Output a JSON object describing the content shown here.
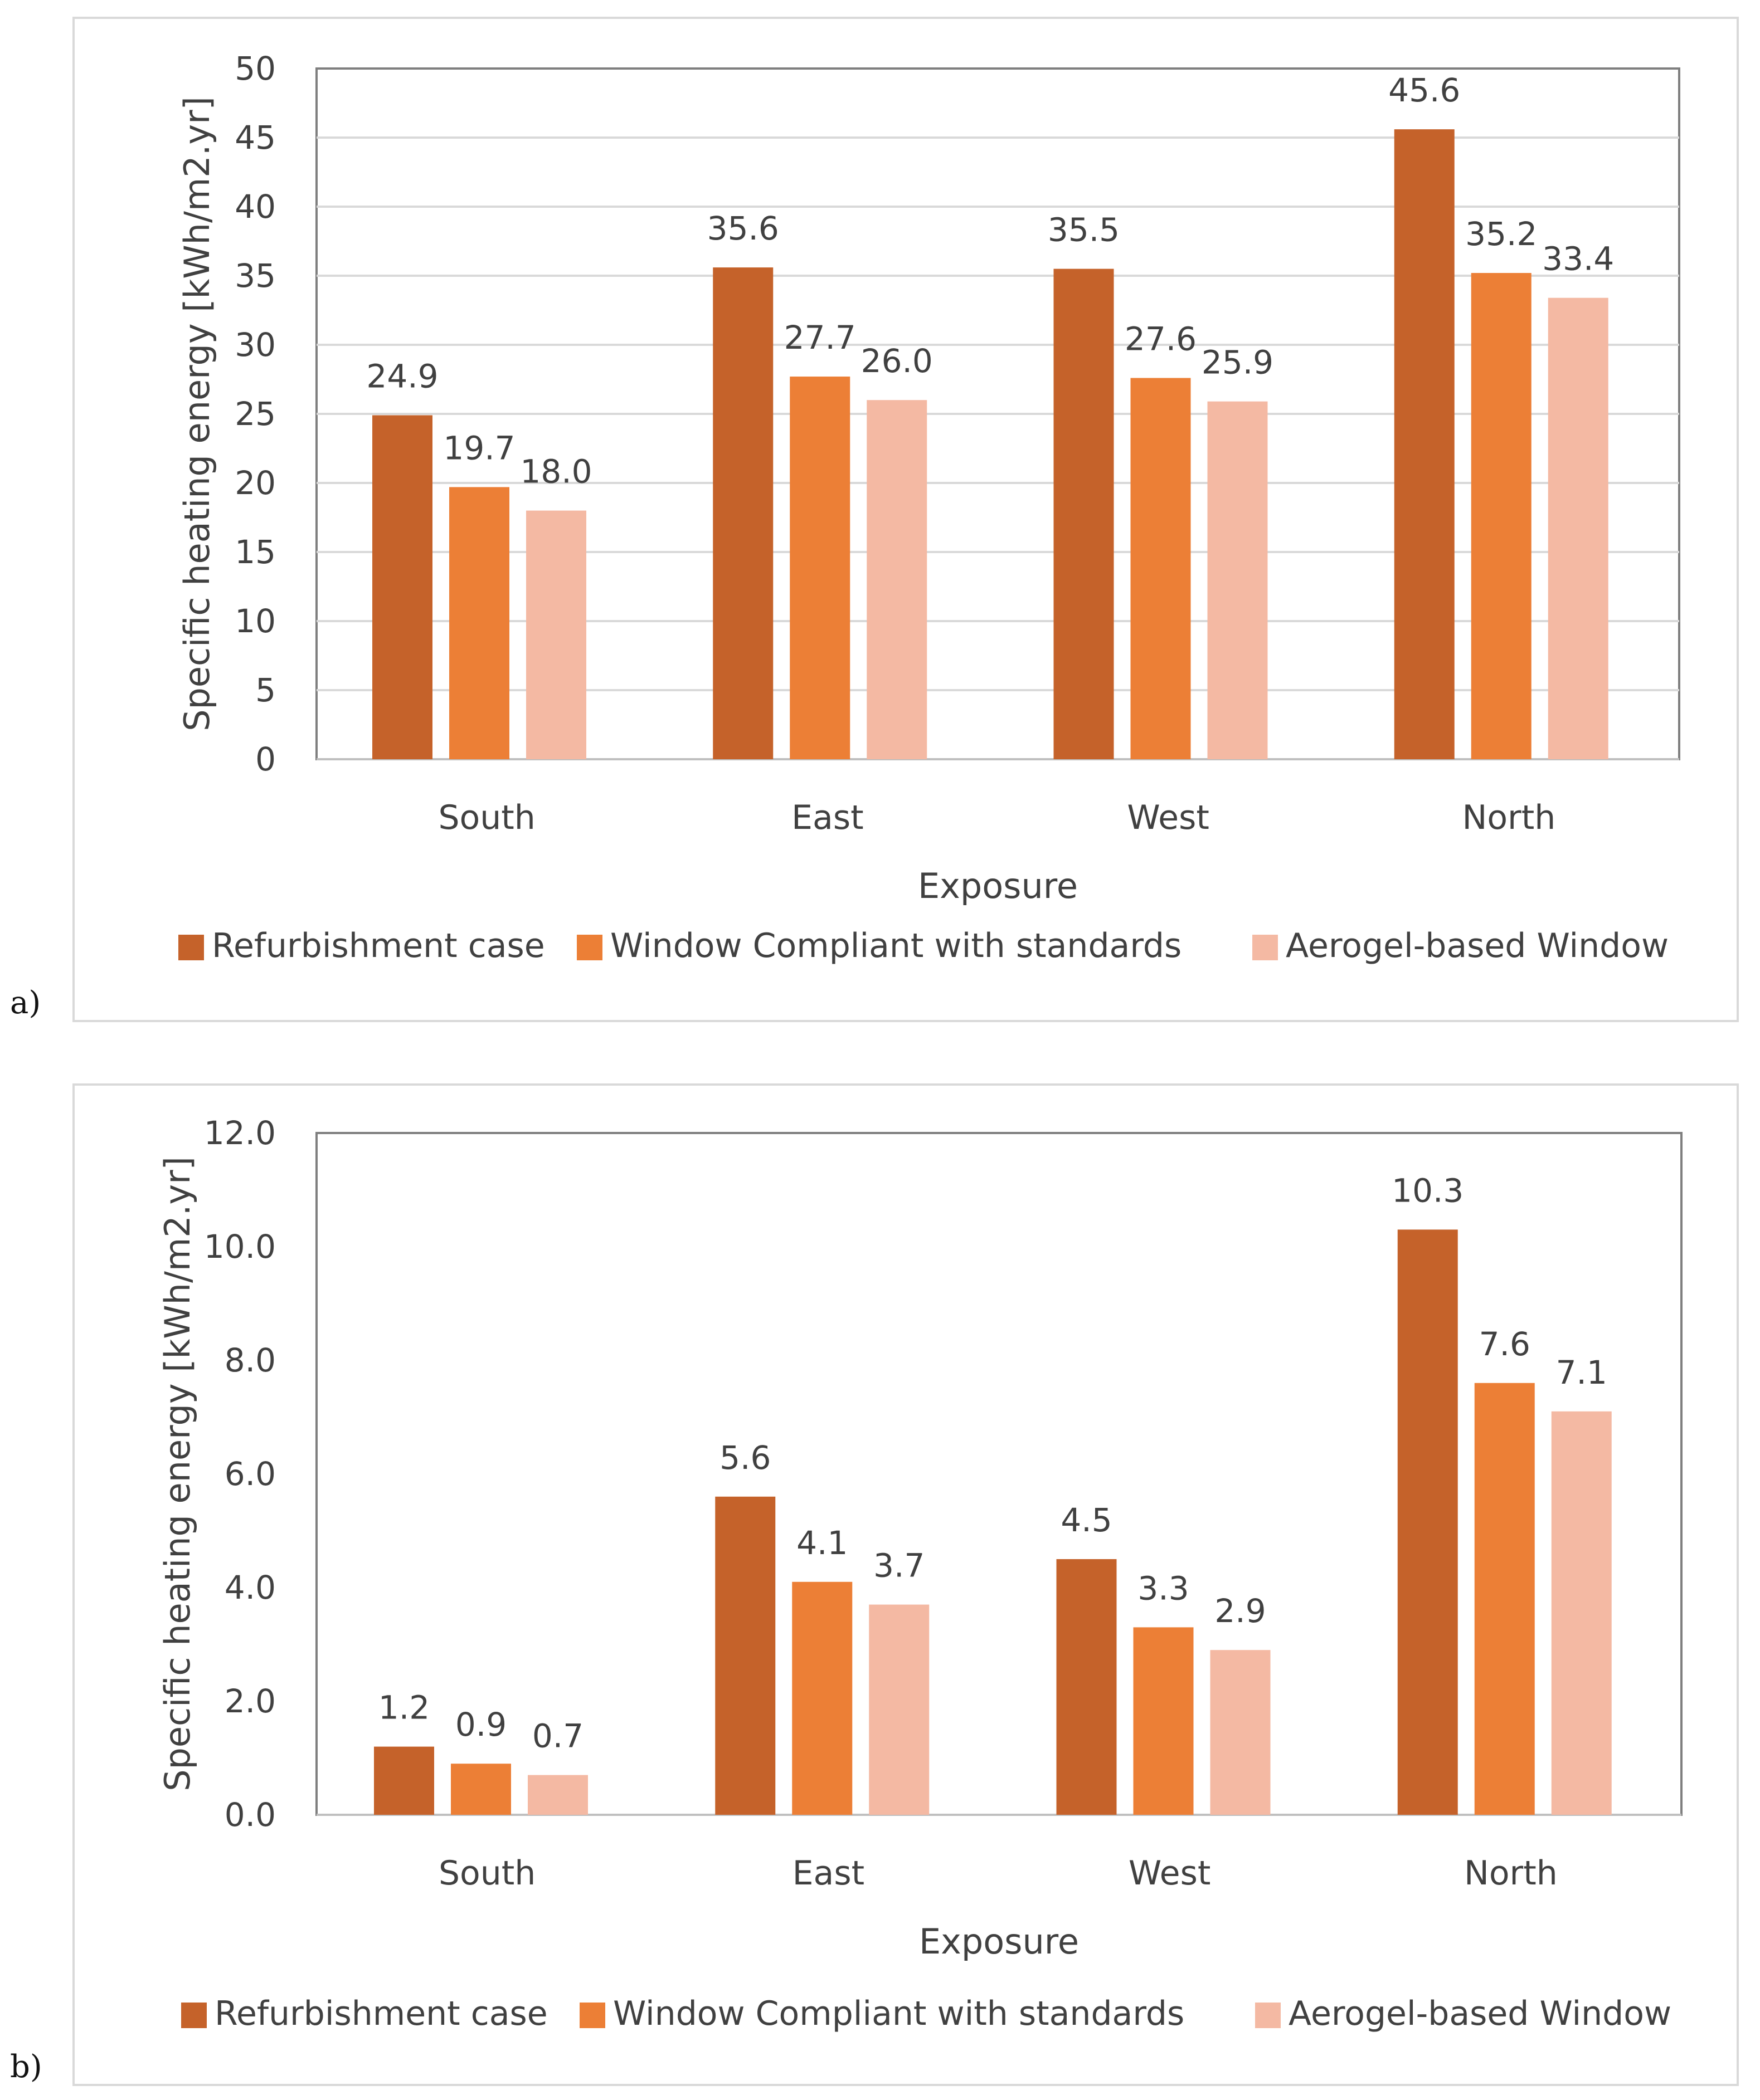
{
  "chart_data": [
    {
      "type": "bar",
      "panel_label": "a)",
      "title": "",
      "xlabel": "Exposure",
      "ylabel": "Specific heating energy [kWh/m2.yr]",
      "categories": [
        "South",
        "East",
        "West",
        "North"
      ],
      "ylim": [
        0,
        50
      ],
      "yticks": [
        0,
        5,
        10,
        15,
        20,
        25,
        30,
        35,
        40,
        45,
        50
      ],
      "ytick_labels": [
        "0",
        "5",
        "10",
        "15",
        "20",
        "25",
        "30",
        "35",
        "40",
        "45",
        "50"
      ],
      "grid": true,
      "legend": "bottom",
      "series": [
        {
          "name": "Refurbishment case",
          "color": "#c5622a",
          "values": [
            24.9,
            35.6,
            35.5,
            45.6
          ],
          "labels": [
            "24.9",
            "35.6",
            "35.5",
            "45.6"
          ]
        },
        {
          "name": "Window Compliant with standards",
          "color": "#ec7f36",
          "values": [
            19.7,
            27.7,
            27.6,
            35.2
          ],
          "labels": [
            "19.7",
            "27.7",
            "27.6",
            "35.2"
          ]
        },
        {
          "name": "Aerogel-based Window",
          "color": "#f4b9a3",
          "values": [
            18.0,
            26.0,
            25.9,
            33.4
          ],
          "labels": [
            "18.0",
            "26.0",
            "25.9",
            "33.4"
          ]
        }
      ]
    },
    {
      "type": "bar",
      "panel_label": "b)",
      "title": "",
      "xlabel": "Exposure",
      "ylabel": "Specific heating energy [kWh/m2.yr]",
      "categories": [
        "South",
        "East",
        "West",
        "North"
      ],
      "ylim": [
        0,
        12
      ],
      "yticks": [
        0,
        2,
        4,
        6,
        8,
        10,
        12
      ],
      "ytick_labels": [
        "0.0",
        "2.0",
        "4.0",
        "6.0",
        "8.0",
        "10.0",
        "12.0"
      ],
      "grid": false,
      "legend": "bottom",
      "series": [
        {
          "name": "Refurbishment case",
          "color": "#c5622a",
          "values": [
            1.2,
            5.6,
            4.5,
            10.3
          ],
          "labels": [
            "1.2",
            "5.6",
            "4.5",
            "10.3"
          ]
        },
        {
          "name": "Window Compliant with standards",
          "color": "#ec7f36",
          "values": [
            0.9,
            4.1,
            3.3,
            7.6
          ],
          "labels": [
            "0.9",
            "4.1",
            "3.3",
            "7.6"
          ]
        },
        {
          "name": "Aerogel-based Window",
          "color": "#f4b9a3",
          "values": [
            0.7,
            3.7,
            2.9,
            7.1
          ],
          "labels": [
            "0.7",
            "3.7",
            "2.9",
            "7.1"
          ]
        }
      ]
    }
  ]
}
